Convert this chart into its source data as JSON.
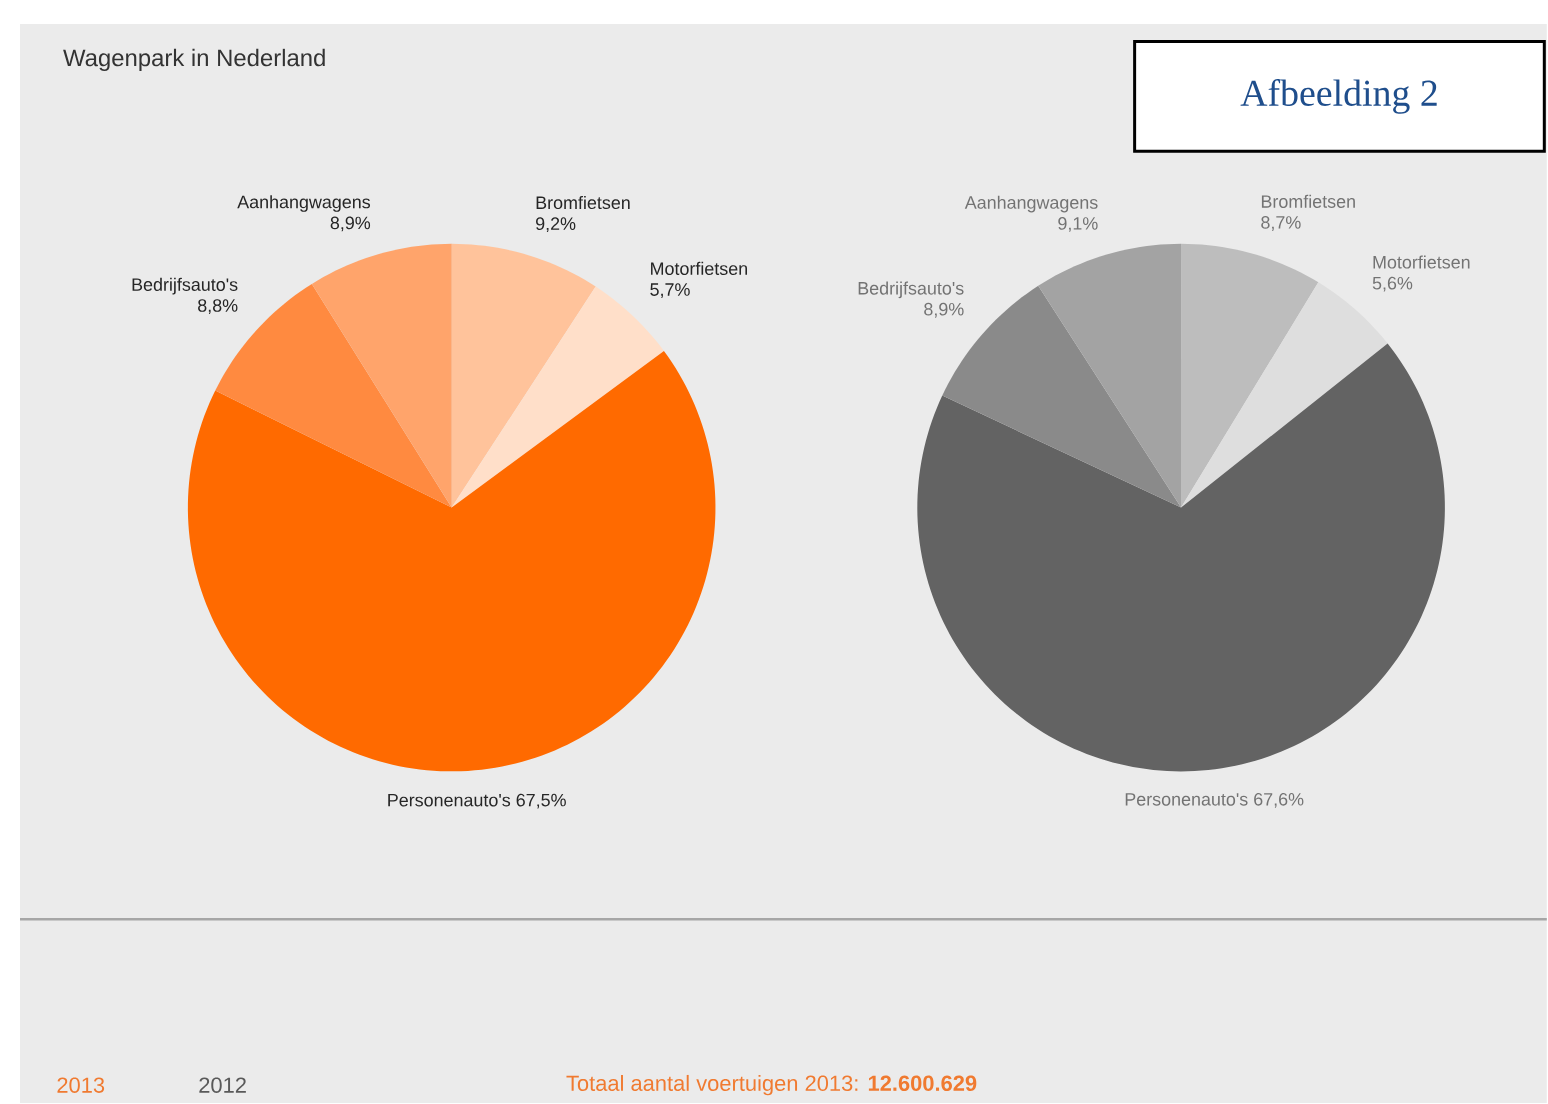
{
  "chart_data": [
    {
      "type": "pie",
      "title": "Wagenpark in Nederland",
      "categories": [
        "Bromfietsen",
        "Motorfietsen",
        "Personenauto's",
        "Bedrijfsauto's",
        "Aanhangwagens"
      ],
      "values": [
        9.2,
        5.7,
        67.5,
        8.8,
        8.9
      ],
      "value_labels": [
        "9,2%",
        "5,7%",
        "67,5%",
        "8,8%",
        "8,9%"
      ],
      "colors": [
        "#ffc39b",
        "#ffdfc9",
        "#ff6a00",
        "#ff8a40",
        "#ffa46b"
      ],
      "annotations": [
        "Afbeelding 2",
        "2013",
        "2012",
        "Totaal aantal voertuigen 2013: **12.600.629**"
      ]
    },
    {
      "type": "pie",
      "categories": [
        "Bromfietsen",
        "Motorfietsen",
        "Personenauto's",
        "Bedrijfsauto's",
        "Aanhangwagens"
      ],
      "values": [
        8.7,
        5.6,
        67.6,
        8.9,
        9.1
      ],
      "value_labels": [
        "8,7%",
        "5,6%",
        "67,6%",
        "8,9%",
        "9,1%"
      ],
      "colors": [
        "#bdbdbd",
        "#dedede",
        "#636363",
        "#8a8a8a",
        "#a3a3a3"
      ]
    }
  ]
}
